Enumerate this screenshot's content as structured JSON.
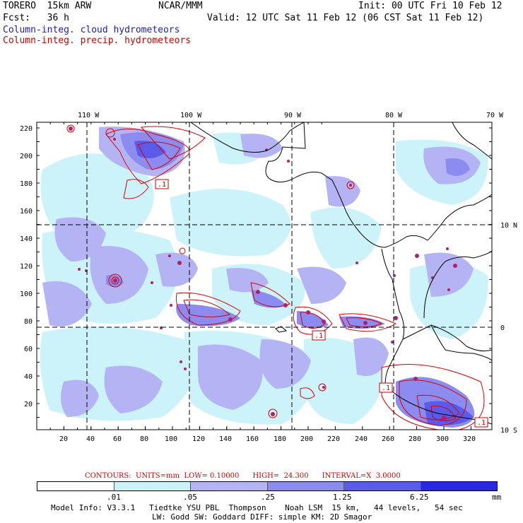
{
  "header": {
    "model": "TORERO  15km ARW",
    "org": "NCAR/MMM",
    "init": "Init: 00 UTC Fri 10 Feb 12",
    "fcst": "Fcst:   36 h",
    "valid": "Valid: 12 UTC Sat 11 Feb 12 (06 CST Sat 11 Feb 12)",
    "field1": "Column-integ. cloud hydrometeors",
    "field2": "Column-integ. precip. hydrometeors"
  },
  "axes": {
    "lon_labels": [
      "110 W",
      "100 W",
      "90 W",
      "80 W",
      "70 W"
    ],
    "lat_labels": [
      "10 N",
      "0",
      "10 S"
    ],
    "y_ticks": [
      "220",
      "200",
      "180",
      "160",
      "140",
      "120",
      "100",
      "80",
      "60",
      "40",
      "20"
    ],
    "x_ticks": [
      "20",
      "40",
      "60",
      "80",
      "100",
      "120",
      "140",
      "160",
      "180",
      "200",
      "220",
      "240",
      "260",
      "280",
      "300",
      "320"
    ]
  },
  "contour_labels": [
    ".1",
    ".1",
    ".1",
    ".1"
  ],
  "contours_info": "CONTOURS:  UNITS=mm  LOW= 0.10000      HIGH=  24.300      INTERVAL=X  3.0000",
  "colorbar": {
    "values": [
      ".01",
      ".05",
      ".25",
      "1.25",
      "6.25"
    ],
    "unit": "mm",
    "colors": [
      "#ffffff",
      "#ccf2fa",
      "#b4b4f5",
      "#8c8cf0",
      "#5a5aeb",
      "#2828e6"
    ]
  },
  "footer": {
    "line1": "Model Info: V3.3.1   Tiedtke YSU PBL  Thompson    Noah LSM  15 km,   44 levels,   54 sec",
    "line2": "LW: Godd SW: Goddard DIFF: simple KM: 2D Smagor"
  }
}
